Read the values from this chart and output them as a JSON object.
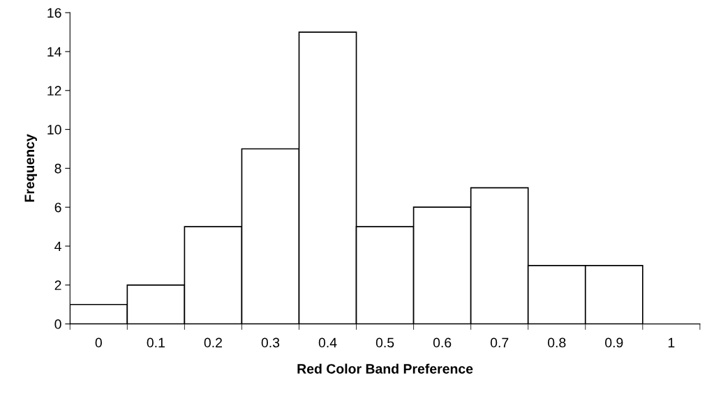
{
  "chart_data": {
    "type": "bar",
    "xlabel": "Red Color Band Preference",
    "ylabel": "Frequency",
    "categories": [
      "0",
      "0.1",
      "0.2",
      "0.3",
      "0.4",
      "0.5",
      "0.6",
      "0.7",
      "0.8",
      "0.9",
      "1"
    ],
    "values": [
      1,
      2,
      5,
      9,
      15,
      5,
      6,
      7,
      3,
      3,
      null
    ],
    "color": "#ffffff",
    "ylim": [
      0,
      16
    ],
    "yticks": [
      0,
      2,
      4,
      6,
      8,
      10,
      12,
      14,
      16
    ],
    "grid": false
  }
}
